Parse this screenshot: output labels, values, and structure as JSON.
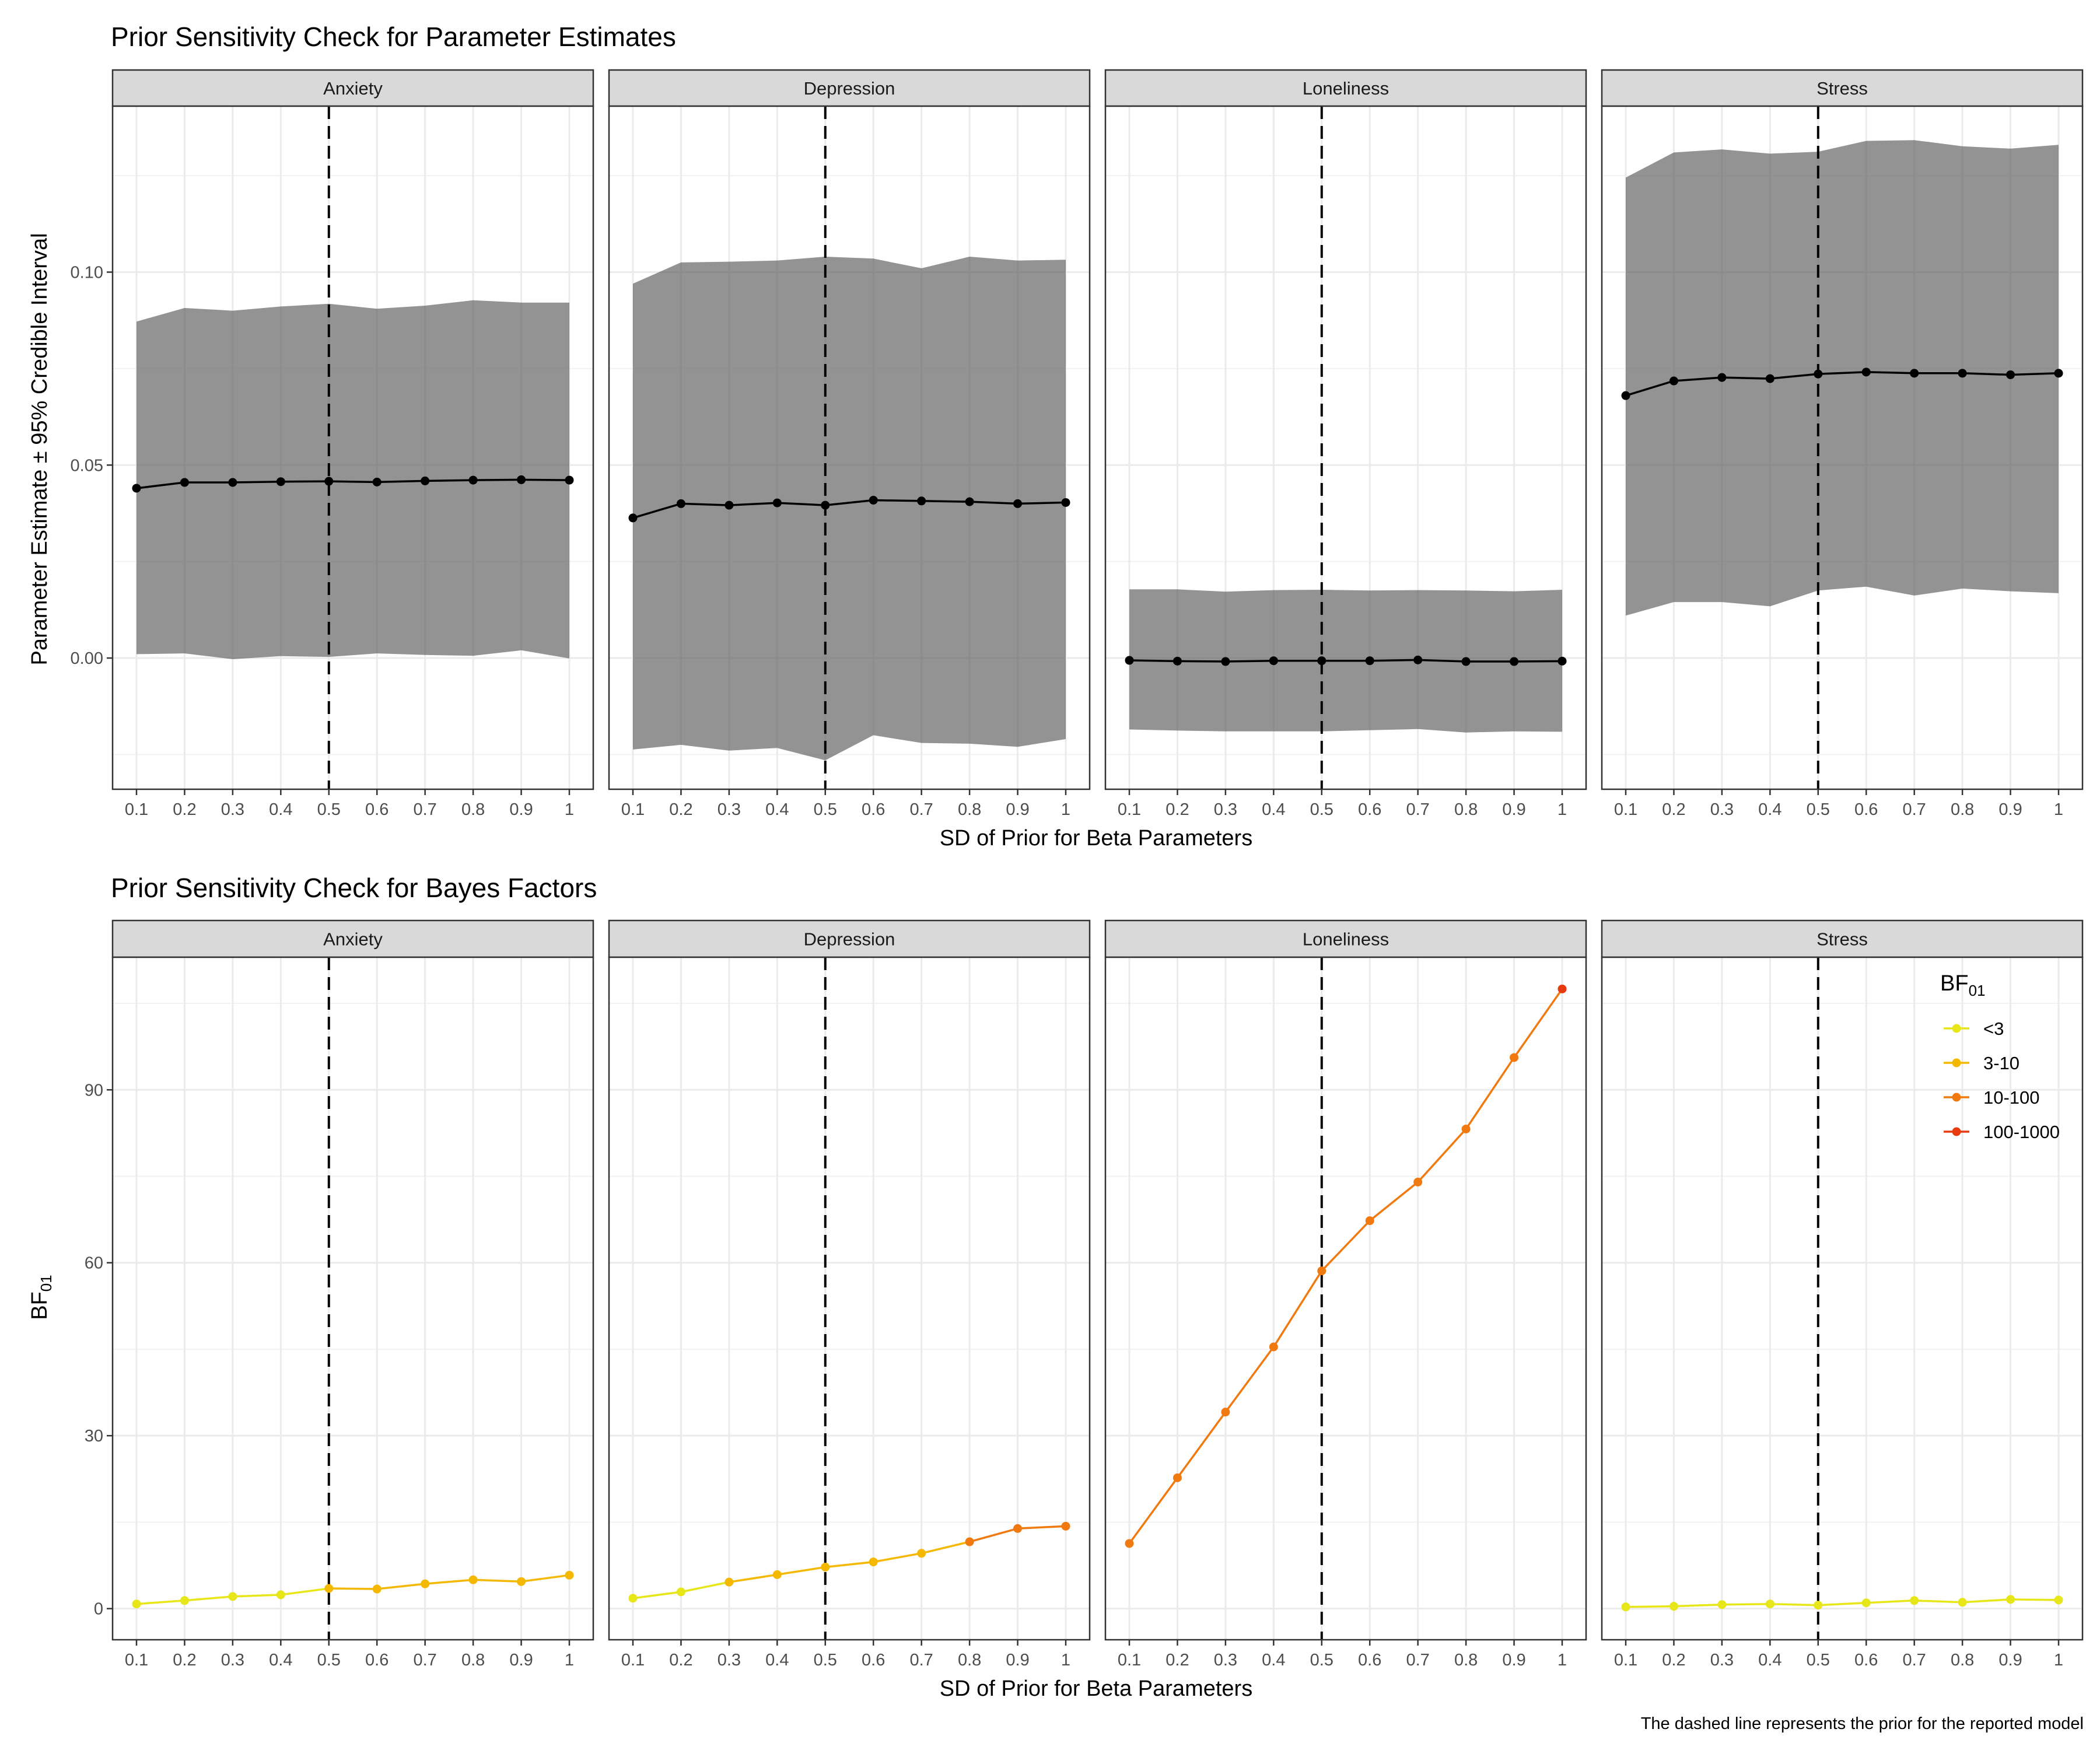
{
  "top": {
    "title": "Prior Sensitivity Check for Parameter Estimates",
    "ylabel": "Parameter Estimate ± 95% Credible Interval",
    "xlabel": "SD of Prior for Beta Parameters"
  },
  "bottom": {
    "title": "Prior Sensitivity Check for Bayes Factors",
    "ylabel_main": "BF",
    "ylabel_sub": "01",
    "xlabel": "SD of Prior for Beta Parameters"
  },
  "legend": {
    "title_main": "BF",
    "title_sub": "01",
    "items": [
      {
        "label": "<3",
        "color": "#E6E619"
      },
      {
        "label": "3-10",
        "color": "#F5B800"
      },
      {
        "label": "10-100",
        "color": "#F07A10"
      },
      {
        "label": "100-1000",
        "color": "#E83A10"
      }
    ]
  },
  "caption": "The dashed line represents the prior for the reported model",
  "chart_data": [
    {
      "type": "line",
      "title": "Prior Sensitivity Check for Parameter Estimates",
      "xlabel": "SD of Prior for Beta Parameters",
      "ylabel": "Parameter Estimate ± 95% Credible Interval",
      "x": [
        0.1,
        0.2,
        0.3,
        0.4,
        0.5,
        0.6,
        0.7,
        0.8,
        0.9,
        1
      ],
      "xticks": [
        "0.1",
        "0.2",
        "0.3",
        "0.4",
        "0.5",
        "0.6",
        "0.7",
        "0.8",
        "0.9",
        "1"
      ],
      "ylim": [
        -0.034,
        0.143
      ],
      "yticks": [
        0.0,
        0.05,
        0.1
      ],
      "ytick_labels": [
        "0.00",
        "0.05",
        "0.10"
      ],
      "reference_x": 0.5,
      "grid": true,
      "panels": [
        {
          "name": "Anxiety",
          "estimate": [
            0.044,
            0.0455,
            0.0455,
            0.0457,
            0.0458,
            0.0456,
            0.0459,
            0.0461,
            0.0462,
            0.0461
          ],
          "lower": [
            0.001,
            0.0012,
            -0.0003,
            0.0005,
            0.0003,
            0.0012,
            0.0008,
            0.0006,
            0.002,
            -0.0001
          ],
          "upper": [
            0.0872,
            0.0907,
            0.09,
            0.0911,
            0.0918,
            0.0905,
            0.0913,
            0.0927,
            0.0921,
            0.0921
          ]
        },
        {
          "name": "Depression",
          "estimate": [
            0.0363,
            0.04,
            0.0396,
            0.0402,
            0.0396,
            0.0409,
            0.0407,
            0.0405,
            0.04,
            0.0403
          ],
          "lower": [
            -0.0237,
            -0.0225,
            -0.024,
            -0.0233,
            -0.0265,
            -0.02,
            -0.022,
            -0.0222,
            -0.023,
            -0.021
          ],
          "upper": [
            0.097,
            0.1025,
            0.1027,
            0.103,
            0.104,
            0.1035,
            0.101,
            0.104,
            0.103,
            0.1032
          ]
        },
        {
          "name": "Loneliness",
          "estimate": [
            -0.0006,
            -0.0008,
            -0.0009,
            -0.0007,
            -0.0007,
            -0.0007,
            -0.0005,
            -0.0009,
            -0.0009,
            -0.0008
          ],
          "lower": [
            -0.0185,
            -0.0188,
            -0.019,
            -0.019,
            -0.019,
            -0.0187,
            -0.0184,
            -0.0193,
            -0.019,
            -0.0191
          ],
          "upper": [
            0.0178,
            0.0178,
            0.0172,
            0.0176,
            0.0177,
            0.0175,
            0.0176,
            0.0175,
            0.0173,
            0.0177
          ]
        },
        {
          "name": "Stress",
          "estimate": [
            0.068,
            0.0718,
            0.0727,
            0.0724,
            0.0736,
            0.0741,
            0.0738,
            0.0738,
            0.0734,
            0.0738
          ],
          "lower": [
            0.011,
            0.0145,
            0.0145,
            0.0134,
            0.0175,
            0.0185,
            0.0162,
            0.018,
            0.0173,
            0.0168
          ],
          "upper": [
            0.1245,
            0.131,
            0.1318,
            0.1307,
            0.1312,
            0.134,
            0.1342,
            0.1326,
            0.132,
            0.133
          ]
        }
      ]
    },
    {
      "type": "line",
      "title": "Prior Sensitivity Check for Bayes Factors",
      "xlabel": "SD of Prior for Beta Parameters",
      "ylabel": "BF01",
      "x": [
        0.1,
        0.2,
        0.3,
        0.4,
        0.5,
        0.6,
        0.7,
        0.8,
        0.9,
        1
      ],
      "xticks": [
        "0.1",
        "0.2",
        "0.3",
        "0.4",
        "0.5",
        "0.6",
        "0.7",
        "0.8",
        "0.9",
        "1"
      ],
      "ylim": [
        -5.4,
        113
      ],
      "yticks": [
        0,
        30,
        60,
        90
      ],
      "ytick_labels": [
        "0",
        "30",
        "60",
        "90"
      ],
      "reference_x": 0.5,
      "grid": true,
      "legend_position": "top-right",
      "panels": [
        {
          "name": "Anxiety",
          "bf01": [
            0.8,
            1.4,
            2.1,
            2.4,
            3.5,
            3.4,
            4.3,
            5.0,
            4.7,
            5.8
          ]
        },
        {
          "name": "Depression",
          "bf01": [
            1.8,
            2.9,
            4.6,
            5.9,
            7.2,
            8.1,
            9.6,
            11.6,
            13.9,
            14.3
          ]
        },
        {
          "name": "Loneliness",
          "bf01": [
            11.3,
            22.7,
            34.1,
            45.4,
            58.6,
            67.3,
            74.0,
            83.2,
            95.6,
            107.5
          ]
        },
        {
          "name": "Stress",
          "bf01": [
            0.3,
            0.4,
            0.7,
            0.8,
            0.6,
            1.0,
            1.4,
            1.1,
            1.6,
            1.5
          ]
        }
      ]
    }
  ]
}
